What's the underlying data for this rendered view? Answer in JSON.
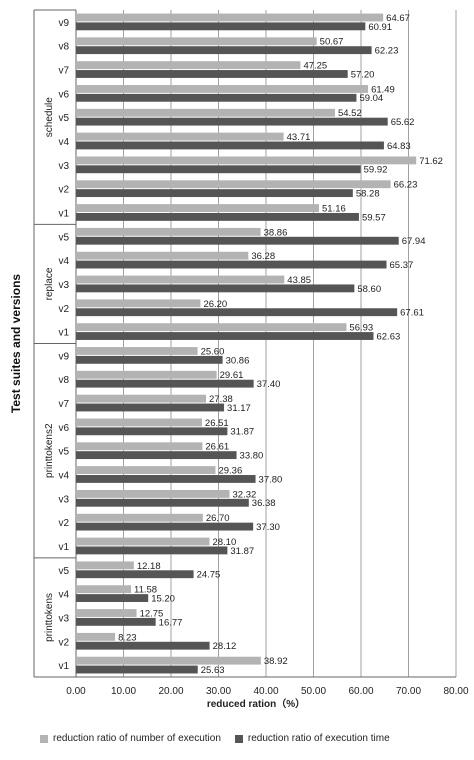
{
  "chart_data": {
    "type": "bar",
    "orientation": "horizontal",
    "xlabel": "reduced ration（%）",
    "ylabel": "Test suites and versions",
    "xlim": [
      0,
      80
    ],
    "xticks": [
      "0.00",
      "10.00",
      "20.00",
      "30.00",
      "40.00",
      "50.00",
      "60.00",
      "70.00",
      "80.00"
    ],
    "grid": true,
    "legend_position": "bottom",
    "series": [
      {
        "name": "reduction ratio of number of execution",
        "color": "#b3b3b3"
      },
      {
        "name": "reduction ratio of execution time",
        "color": "#555555"
      }
    ],
    "groups": [
      {
        "name": "schedule",
        "versions": [
          {
            "label": "v9",
            "values": [
              64.67,
              60.91
            ]
          },
          {
            "label": "v8",
            "values": [
              50.67,
              62.23
            ]
          },
          {
            "label": "v7",
            "values": [
              47.25,
              57.2
            ]
          },
          {
            "label": "v6",
            "values": [
              61.49,
              59.04
            ]
          },
          {
            "label": "v5",
            "values": [
              54.52,
              65.62
            ]
          },
          {
            "label": "v4",
            "values": [
              43.71,
              64.83
            ]
          },
          {
            "label": "v3",
            "values": [
              71.62,
              59.92
            ]
          },
          {
            "label": "v2",
            "values": [
              66.23,
              58.28
            ]
          },
          {
            "label": "v1",
            "values": [
              51.16,
              59.57
            ]
          }
        ]
      },
      {
        "name": "replace",
        "versions": [
          {
            "label": "v5",
            "values": [
              38.86,
              67.94
            ]
          },
          {
            "label": "v4",
            "values": [
              36.28,
              65.37
            ]
          },
          {
            "label": "v3",
            "values": [
              43.85,
              58.6
            ]
          },
          {
            "label": "v2",
            "values": [
              26.2,
              67.61
            ]
          },
          {
            "label": "v1",
            "values": [
              56.93,
              62.63
            ]
          }
        ]
      },
      {
        "name": "printtokens2",
        "versions": [
          {
            "label": "v9",
            "values": [
              25.6,
              30.86
            ]
          },
          {
            "label": "v8",
            "values": [
              29.61,
              37.4
            ]
          },
          {
            "label": "v7",
            "values": [
              27.38,
              31.17
            ]
          },
          {
            "label": "v6",
            "values": [
              26.51,
              31.87
            ]
          },
          {
            "label": "v5",
            "values": [
              26.61,
              33.8
            ]
          },
          {
            "label": "v4",
            "values": [
              29.36,
              37.8
            ]
          },
          {
            "label": "v3",
            "values": [
              32.32,
              36.38
            ]
          },
          {
            "label": "v2",
            "values": [
              26.7,
              37.3
            ]
          },
          {
            "label": "v1",
            "values": [
              28.1,
              31.87
            ]
          }
        ]
      },
      {
        "name": "printtokens",
        "versions": [
          {
            "label": "v5",
            "values": [
              12.18,
              24.75
            ]
          },
          {
            "label": "v4",
            "values": [
              11.58,
              15.2
            ]
          },
          {
            "label": "v3",
            "values": [
              12.75,
              16.77
            ]
          },
          {
            "label": "v2",
            "values": [
              8.23,
              28.12
            ]
          },
          {
            "label": "v1",
            "values": [
              38.92,
              25.63
            ]
          }
        ]
      }
    ]
  }
}
